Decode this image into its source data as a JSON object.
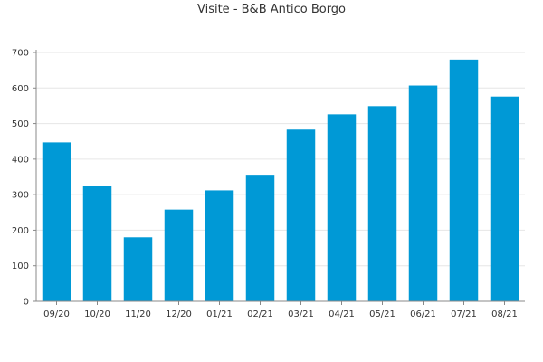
{
  "chart_data": {
    "type": "bar",
    "title": "Visite - B&B Antico Borgo",
    "xlabel": "",
    "ylabel": "",
    "categories": [
      "09/20",
      "10/20",
      "11/20",
      "12/20",
      "01/21",
      "02/21",
      "03/21",
      "04/21",
      "05/21",
      "06/21",
      "07/21",
      "08/21"
    ],
    "values": [
      447,
      325,
      180,
      258,
      312,
      356,
      483,
      526,
      549,
      607,
      680,
      576
    ],
    "ylim": [
      0,
      700
    ],
    "yticks": [
      0,
      100,
      200,
      300,
      400,
      500,
      600,
      700
    ],
    "grid": true,
    "legend": "none",
    "bar_color": "#0099d6"
  }
}
